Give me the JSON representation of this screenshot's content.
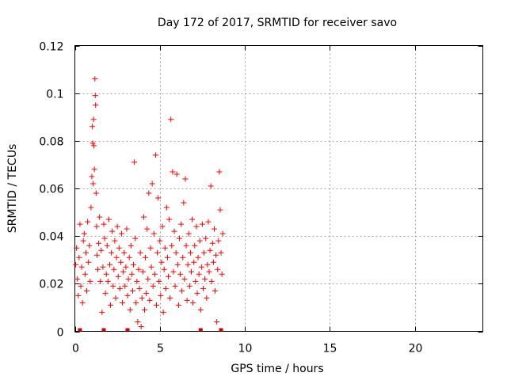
{
  "chart_data": {
    "type": "scatter",
    "title": "Day 172 of 2017, SRMTID for receiver savo",
    "xlabel": "GPS time / hours",
    "ylabel": "SRMTID / TECUs",
    "xlim": [
      0,
      24
    ],
    "ylim": [
      0,
      0.12
    ],
    "x_ticks": [
      0,
      5,
      10,
      15,
      20
    ],
    "x_tick_labels": [
      "0",
      "5",
      "10",
      "15",
      "20"
    ],
    "y_ticks": [
      0,
      0.02,
      0.04,
      0.06,
      0.08,
      0.1,
      0.12
    ],
    "y_tick_labels": [
      "0",
      "0.02",
      "0.04",
      "0.06",
      "0.08",
      "0.1",
      "0.12"
    ],
    "grid": true,
    "legend": "none",
    "marker": "+",
    "series_color": "#ff0000",
    "series": [
      {
        "name": "SRMTID",
        "points": [
          [
            0.05,
            0.028
          ],
          [
            0.1,
            0.035
          ],
          [
            0.15,
            0.022
          ],
          [
            0.2,
            0.015
          ],
          [
            0.25,
            0.031
          ],
          [
            0.3,
            0.045
          ],
          [
            0.35,
            0.019
          ],
          [
            0.4,
            0.027
          ],
          [
            0.45,
            0.012
          ],
          [
            0.5,
            0.038
          ],
          [
            0.55,
            0.041
          ],
          [
            0.6,
            0.024
          ],
          [
            0.65,
            0.033
          ],
          [
            0.7,
            0.017
          ],
          [
            0.75,
            0.046
          ],
          [
            0.8,
            0.029
          ],
          [
            0.85,
            0.036
          ],
          [
            0.9,
            0.021
          ],
          [
            0.95,
            0.052
          ],
          [
            1.0,
            0.065
          ],
          [
            1.02,
            0.086
          ],
          [
            1.05,
            0.079
          ],
          [
            1.08,
            0.062
          ],
          [
            1.1,
            0.089
          ],
          [
            1.12,
            0.078
          ],
          [
            1.15,
            0.068
          ],
          [
            1.18,
            0.106
          ],
          [
            1.2,
            0.099
          ],
          [
            1.22,
            0.095
          ],
          [
            1.25,
            0.058
          ],
          [
            1.28,
            0.044
          ],
          [
            1.3,
            0.032
          ],
          [
            1.35,
            0.026
          ],
          [
            1.4,
            0.037
          ],
          [
            1.45,
            0.048
          ],
          [
            1.5,
            0.021
          ],
          [
            1.55,
            0.034
          ],
          [
            1.6,
            0.008
          ],
          [
            1.65,
            0.027
          ],
          [
            1.7,
            0.045
          ],
          [
            1.75,
            0.039
          ],
          [
            1.8,
            0.016
          ],
          [
            1.85,
            0.024
          ],
          [
            1.9,
            0.036
          ],
          [
            1.95,
            0.021
          ],
          [
            2.0,
            0.047
          ],
          [
            2.05,
            0.028
          ],
          [
            2.1,
            0.011
          ],
          [
            2.15,
            0.033
          ],
          [
            2.2,
            0.042
          ],
          [
            2.25,
            0.019
          ],
          [
            2.3,
            0.026
          ],
          [
            2.35,
            0.038
          ],
          [
            2.4,
            0.014
          ],
          [
            2.45,
            0.031
          ],
          [
            2.5,
            0.044
          ],
          [
            2.55,
            0.023
          ],
          [
            2.6,
            0.035
          ],
          [
            2.65,
            0.018
          ],
          [
            2.7,
            0.029
          ],
          [
            2.75,
            0.041
          ],
          [
            2.8,
            0.012
          ],
          [
            2.85,
            0.025
          ],
          [
            2.9,
            0.033
          ],
          [
            2.95,
            0.019
          ],
          [
            3.0,
            0.027
          ],
          [
            3.05,
            0.043
          ],
          [
            3.1,
            0.015
          ],
          [
            3.15,
            0.022
          ],
          [
            3.2,
            0.031
          ],
          [
            3.25,
            0.009
          ],
          [
            3.3,
            0.036
          ],
          [
            3.35,
            0.024
          ],
          [
            3.4,
            0.017
          ],
          [
            3.45,
            0.028
          ],
          [
            3.5,
            0.071
          ],
          [
            3.55,
            0.039
          ],
          [
            3.6,
            0.012
          ],
          [
            3.65,
            0.021
          ],
          [
            3.7,
            0.004
          ],
          [
            3.75,
            0.026
          ],
          [
            3.8,
            0.018
          ],
          [
            3.85,
            0.033
          ],
          [
            3.9,
            0.002
          ],
          [
            3.95,
            0.014
          ],
          [
            4.0,
            0.025
          ],
          [
            4.05,
            0.048
          ],
          [
            4.1,
            0.009
          ],
          [
            4.15,
            0.031
          ],
          [
            4.2,
            0.016
          ],
          [
            4.25,
            0.043
          ],
          [
            4.3,
            0.022
          ],
          [
            4.35,
            0.058
          ],
          [
            4.4,
            0.013
          ],
          [
            4.45,
            0.035
          ],
          [
            4.5,
            0.027
          ],
          [
            4.55,
            0.062
          ],
          [
            4.6,
            0.019
          ],
          [
            4.65,
            0.041
          ],
          [
            4.7,
            0.024
          ],
          [
            4.75,
            0.074
          ],
          [
            4.8,
            0.011
          ],
          [
            4.85,
            0.033
          ],
          [
            4.9,
            0.056
          ],
          [
            4.95,
            0.021
          ],
          [
            5.0,
            0.038
          ],
          [
            5.05,
            0.015
          ],
          [
            5.1,
            0.029
          ],
          [
            5.15,
            0.044
          ],
          [
            5.2,
            0.008
          ],
          [
            5.25,
            0.026
          ],
          [
            5.3,
            0.035
          ],
          [
            5.35,
            0.018
          ],
          [
            5.4,
            0.052
          ],
          [
            5.45,
            0.031
          ],
          [
            5.5,
            0.023
          ],
          [
            5.55,
            0.047
          ],
          [
            5.6,
            0.014
          ],
          [
            5.65,
            0.089
          ],
          [
            5.7,
            0.036
          ],
          [
            5.75,
            0.067
          ],
          [
            5.8,
            0.025
          ],
          [
            5.85,
            0.042
          ],
          [
            5.9,
            0.019
          ],
          [
            5.95,
            0.033
          ],
          [
            6.0,
            0.066
          ],
          [
            6.05,
            0.028
          ],
          [
            6.1,
            0.011
          ],
          [
            6.15,
            0.039
          ],
          [
            6.2,
            0.024
          ],
          [
            6.25,
            0.045
          ],
          [
            6.3,
            0.017
          ],
          [
            6.35,
            0.031
          ],
          [
            6.4,
            0.054
          ],
          [
            6.45,
            0.022
          ],
          [
            6.5,
            0.064
          ],
          [
            6.55,
            0.036
          ],
          [
            6.6,
            0.013
          ],
          [
            6.65,
            0.028
          ],
          [
            6.7,
            0.041
          ],
          [
            6.75,
            0.019
          ],
          [
            6.8,
            0.033
          ],
          [
            6.85,
            0.025
          ],
          [
            6.9,
            0.047
          ],
          [
            6.95,
            0.012
          ],
          [
            7.0,
            0.029
          ],
          [
            7.05,
            0.036
          ],
          [
            7.1,
            0.021
          ],
          [
            7.15,
            0.044
          ],
          [
            7.2,
            0.016
          ],
          [
            7.25,
            0.031
          ],
          [
            7.3,
            0.024
          ],
          [
            7.35,
            0.038
          ],
          [
            7.4,
            0.009
          ],
          [
            7.45,
            0.027
          ],
          [
            7.5,
            0.045
          ],
          [
            7.55,
            0.018
          ],
          [
            7.6,
            0.033
          ],
          [
            7.65,
            0.022
          ],
          [
            7.7,
            0.039
          ],
          [
            7.75,
            0.014
          ],
          [
            7.8,
            0.028
          ],
          [
            7.85,
            0.046
          ],
          [
            7.9,
            0.025
          ],
          [
            7.95,
            0.034
          ],
          [
            8.0,
            0.061
          ],
          [
            8.05,
            0.021
          ],
          [
            8.1,
            0.037
          ],
          [
            8.15,
            0.029
          ],
          [
            8.2,
            0.043
          ],
          [
            8.25,
            0.017
          ],
          [
            8.3,
            0.032
          ],
          [
            8.35,
            0.004
          ],
          [
            8.4,
            0.026
          ],
          [
            8.45,
            0.038
          ],
          [
            8.5,
            0.067
          ],
          [
            8.55,
            0.051
          ],
          [
            8.6,
            0.033
          ],
          [
            8.65,
            0.024
          ],
          [
            8.7,
            0.041
          ]
        ]
      }
    ],
    "zero_markers": [
      0.3,
      1.7,
      3.1,
      7.4,
      8.6
    ]
  }
}
